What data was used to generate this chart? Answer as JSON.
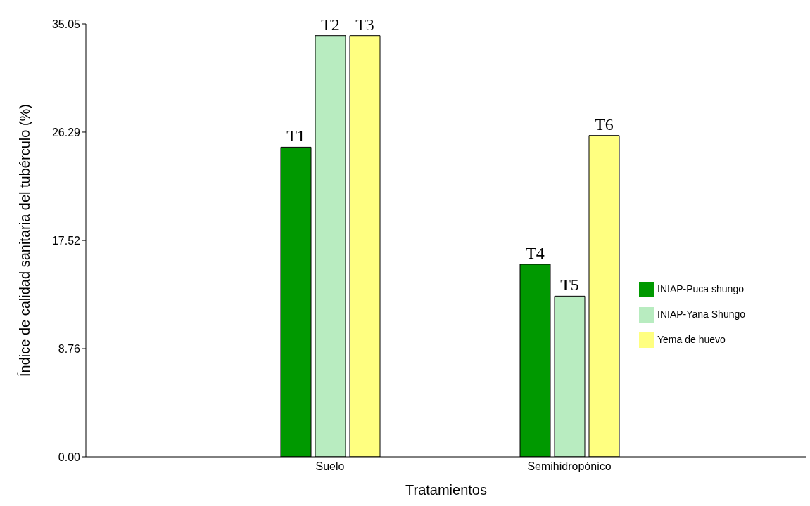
{
  "chart_data": {
    "type": "bar",
    "xlabel": "Tratamientos",
    "ylabel": "Índice de calidad sanitaria del tubérculo (%)",
    "categories": [
      "Suelo",
      "Semihidropónico"
    ],
    "series": [
      {
        "name": "INIAP-Puca shungo",
        "color": "#009900",
        "values": [
          25.07,
          15.59
        ],
        "value_labels": [
          "T1",
          "T4"
        ]
      },
      {
        "name": "INIAP-Yana Shungo",
        "color": "#b8ecc0",
        "values": [
          34.1,
          13.01
        ],
        "value_labels": [
          "T2",
          "T5"
        ]
      },
      {
        "name": "Yema de huevo",
        "color": "#ffff80",
        "values": [
          34.1,
          26.02
        ],
        "value_labels": [
          "T3",
          "T6"
        ]
      }
    ],
    "ylim": [
      0,
      35.05
    ],
    "yticks": [
      {
        "value": 0,
        "label": "0.00"
      },
      {
        "value": 8.76,
        "label": "8.76"
      },
      {
        "value": 17.52,
        "label": "17.52"
      },
      {
        "value": 26.29,
        "label": "26.29"
      },
      {
        "value": 35.05,
        "label": "35.05"
      }
    ],
    "legend": "right"
  }
}
